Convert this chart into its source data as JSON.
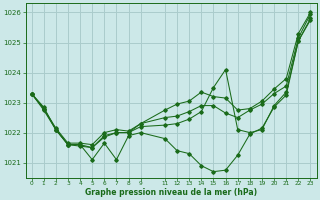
{
  "background_color": "#cce8e8",
  "grid_color": "#aacccc",
  "line_color": "#1a6b1a",
  "text_color": "#1a6b1a",
  "xlabel": "Graphe pression niveau de la mer (hPa)",
  "xlim": [
    -0.5,
    23.5
  ],
  "ylim": [
    1020.5,
    1026.3
  ],
  "yticks": [
    1021,
    1022,
    1023,
    1024,
    1025,
    1026
  ],
  "xtick_vals": [
    0,
    1,
    2,
    3,
    4,
    5,
    6,
    7,
    8,
    9,
    11,
    12,
    13,
    14,
    15,
    16,
    17,
    18,
    19,
    20,
    21,
    22,
    23
  ],
  "xtick_labels": [
    "0",
    "1",
    "2",
    "3",
    "4",
    "5",
    "6",
    "7",
    "8",
    "9",
    "11",
    "12",
    "13",
    "14",
    "15",
    "16",
    "17",
    "18",
    "19",
    "20",
    "21",
    "22",
    "23"
  ],
  "series": [
    {
      "x": [
        0,
        1,
        2,
        3,
        4,
        5,
        6,
        7,
        8,
        9,
        11,
        12,
        13,
        14,
        15,
        16,
        17,
        18,
        19,
        20,
        21,
        22,
        23
      ],
      "y": [
        1023.3,
        1022.85,
        1022.1,
        1021.6,
        1021.6,
        1021.1,
        1021.65,
        1021.1,
        1021.9,
        1022.0,
        1021.8,
        1021.4,
        1021.3,
        1020.9,
        1020.7,
        1020.75,
        1021.25,
        1021.95,
        1022.15,
        1022.85,
        1023.25,
        1025.05,
        1025.75
      ]
    },
    {
      "x": [
        0,
        1,
        2,
        3,
        4,
        5,
        6,
        7,
        8,
        9,
        11,
        12,
        13,
        14,
        15,
        16,
        17,
        18,
        19,
        20,
        21,
        22,
        23
      ],
      "y": [
        1023.3,
        1022.8,
        1022.1,
        1021.6,
        1021.6,
        1021.5,
        1021.9,
        1022.0,
        1022.0,
        1022.3,
        1022.5,
        1022.55,
        1022.7,
        1022.9,
        1022.9,
        1022.65,
        1022.5,
        1022.75,
        1022.95,
        1023.3,
        1023.55,
        1025.15,
        1025.95
      ]
    },
    {
      "x": [
        0,
        1,
        2,
        3,
        4,
        5,
        6,
        7,
        8,
        9,
        11,
        12,
        13,
        14,
        15,
        16,
        17,
        18,
        19,
        20,
        21,
        22,
        23
      ],
      "y": [
        1023.3,
        1022.8,
        1022.15,
        1021.65,
        1021.65,
        1021.6,
        1022.0,
        1022.1,
        1022.05,
        1022.3,
        1022.75,
        1022.95,
        1023.05,
        1023.35,
        1023.2,
        1023.15,
        1022.75,
        1022.8,
        1023.05,
        1023.45,
        1023.8,
        1025.3,
        1026.0
      ]
    },
    {
      "x": [
        0,
        1,
        2,
        3,
        4,
        5,
        6,
        7,
        8,
        9,
        11,
        12,
        13,
        14,
        15,
        16,
        17,
        18,
        19,
        20,
        21,
        22,
        23
      ],
      "y": [
        1023.3,
        1022.75,
        1022.1,
        1021.6,
        1021.55,
        1021.5,
        1021.85,
        1022.0,
        1022.0,
        1022.2,
        1022.25,
        1022.3,
        1022.45,
        1022.7,
        1023.5,
        1024.1,
        1022.1,
        1022.0,
        1022.1,
        1022.9,
        1023.35,
        1025.05,
        1025.8
      ]
    }
  ]
}
